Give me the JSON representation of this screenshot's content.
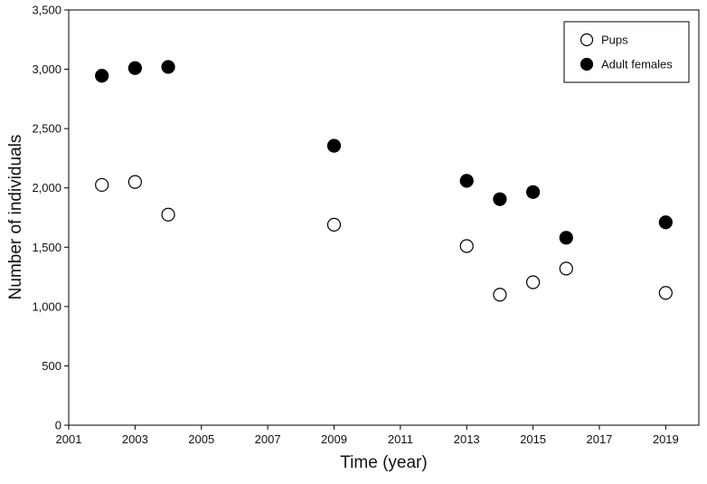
{
  "chart_data": {
    "type": "scatter",
    "title": "",
    "xlabel": "Time (year)",
    "ylabel": "Number of individuals",
    "xlim": [
      2001,
      2020
    ],
    "ylim": [
      0,
      3500
    ],
    "x_ticks": [
      "2001",
      "2003",
      "2005",
      "2007",
      "2009",
      "2011",
      "2013",
      "2015",
      "2017",
      "2019"
    ],
    "y_ticks": [
      "0",
      "500",
      "1,000",
      "1,500",
      "2,000",
      "2,500",
      "3,000",
      "3,500"
    ],
    "legend_position": "top-right",
    "grid": false,
    "series": [
      {
        "name": "Pups",
        "marker": "open-circle",
        "color": "#000000",
        "points": [
          {
            "x": 2002,
            "y": 2025
          },
          {
            "x": 2003,
            "y": 2050
          },
          {
            "x": 2004,
            "y": 1775
          },
          {
            "x": 2009,
            "y": 1690
          },
          {
            "x": 2013,
            "y": 1510
          },
          {
            "x": 2014,
            "y": 1100
          },
          {
            "x": 2015,
            "y": 1205
          },
          {
            "x": 2016,
            "y": 1320
          },
          {
            "x": 2019,
            "y": 1115
          }
        ]
      },
      {
        "name": "Adult females",
        "marker": "filled-circle",
        "color": "#000000",
        "points": [
          {
            "x": 2002,
            "y": 2945
          },
          {
            "x": 2003,
            "y": 3010
          },
          {
            "x": 2004,
            "y": 3020
          },
          {
            "x": 2009,
            "y": 2355
          },
          {
            "x": 2013,
            "y": 2060
          },
          {
            "x": 2014,
            "y": 1905
          },
          {
            "x": 2015,
            "y": 1965
          },
          {
            "x": 2016,
            "y": 1580
          },
          {
            "x": 2019,
            "y": 1710
          }
        ]
      }
    ]
  }
}
